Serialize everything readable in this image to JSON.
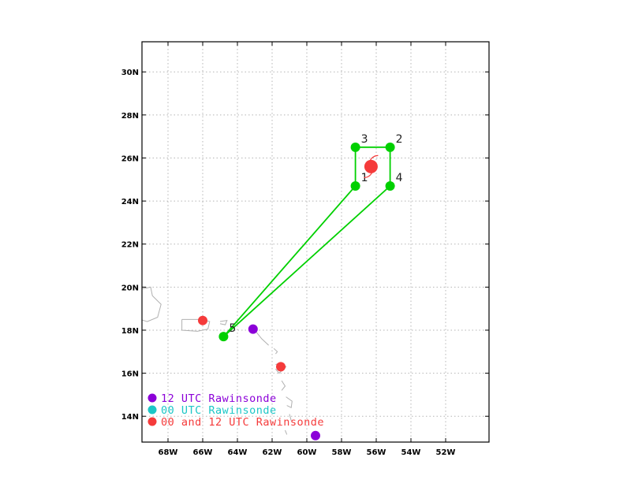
{
  "colors": {
    "twelve_utc": "#8b00d8",
    "zero_utc": "#1cc7c7",
    "both_utc": "#f53b3b",
    "track": "#00d000",
    "center": "#f53b3b",
    "coast": "#b0b0b0",
    "grid": "#b5b5b5"
  },
  "x_ticks": [
    "68W",
    "66W",
    "64W",
    "62W",
    "60W",
    "58W",
    "56W",
    "54W",
    "52W"
  ],
  "y_ticks": [
    "14N",
    "16N",
    "18N",
    "20N",
    "22N",
    "24N",
    "26N",
    "28N",
    "30N"
  ],
  "legend": [
    {
      "label": "12 UTC Rawinsonde",
      "color_key": "twelve_utc"
    },
    {
      "label": "00 UTC Rawinsonde",
      "color_key": "zero_utc"
    },
    {
      "label": "00 and 12 UTC Rawinsonde",
      "color_key": "both_utc"
    }
  ],
  "chart_data": {
    "type": "map",
    "lon_range": [
      -69.5,
      -49.5
    ],
    "lat_range": [
      12.8,
      31.4
    ],
    "grid": true,
    "legend_position": "bottom-left",
    "storm_center": {
      "lon": -56.3,
      "lat": 25.6
    },
    "track_points": [
      {
        "label": "1",
        "lon": -57.2,
        "lat": 24.7
      },
      {
        "label": "2",
        "lon": -55.2,
        "lat": 26.5
      },
      {
        "label": "3",
        "lon": -57.2,
        "lat": 26.5
      },
      {
        "label": "4",
        "lon": -55.2,
        "lat": 24.7
      },
      {
        "label": "5",
        "lon": -64.8,
        "lat": 17.7
      }
    ],
    "track_path": [
      "4",
      "2",
      "3",
      "1",
      "5",
      "4"
    ],
    "rawinsondes": [
      {
        "type": "both_utc",
        "lon": -66.0,
        "lat": 18.45
      },
      {
        "type": "both_utc",
        "lon": -61.5,
        "lat": 16.3
      },
      {
        "type": "twelve_utc",
        "lon": -63.1,
        "lat": 18.05
      },
      {
        "type": "twelve_utc",
        "lon": -59.5,
        "lat": 13.1
      }
    ]
  }
}
